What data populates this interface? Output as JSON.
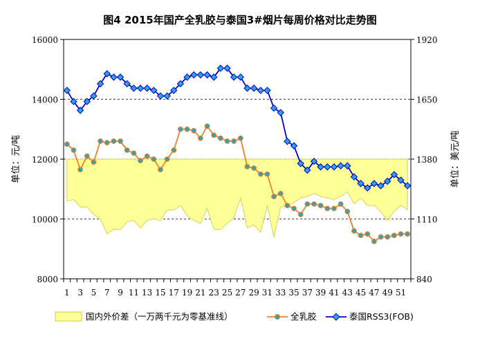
{
  "chart_data": {
    "type": "line",
    "title": "图4  2015年国产全乳胶与泰国3#烟片每周价格对比走势图",
    "ylabel_left": "单位：元/吨",
    "ylabel_right": "单位：美元/吨",
    "left_axis": {
      "min": 8000,
      "max": 16000,
      "ticks": [
        "8000",
        "10000",
        "12000",
        "14000",
        "16000"
      ]
    },
    "right_axis": {
      "min": 840,
      "max": 1920,
      "ticks": [
        "840",
        "1110",
        "1380",
        "1650",
        "1920"
      ]
    },
    "x_ticks": [
      "1",
      "3",
      "5",
      "7",
      "9",
      "11",
      "13",
      "15",
      "17",
      "19",
      "21",
      "23",
      "25",
      "27",
      "29",
      "31",
      "33",
      "35",
      "37",
      "39",
      "41",
      "43",
      "45",
      "47",
      "49",
      "51"
    ],
    "weeks": 52,
    "spread_baseline": 12000,
    "grid": "dashed-horizontal",
    "legend_placement": "bottom",
    "colors": {
      "spread_fill": "#ffff99",
      "spread_stroke": "#c9c93a",
      "latex_line": "#f08020",
      "latex_marker": "#3aa0b0",
      "rss3_line": "#0000cc",
      "rss3_marker": "#30a0e0"
    },
    "series": [
      {
        "name": "国内外价差（一万两千元为零基准线）",
        "kind": "area",
        "axis": "left",
        "values": [
          10600,
          10650,
          10400,
          10400,
          10150,
          10000,
          9500,
          9650,
          9650,
          9900,
          9950,
          9700,
          9950,
          10000,
          9950,
          10300,
          10300,
          10450,
          10100,
          9950,
          9850,
          10350,
          9650,
          9650,
          9850,
          10050,
          10700,
          9700,
          9800,
          9550,
          10450,
          9400,
          10400,
          10450,
          10550,
          10700,
          10750,
          10850,
          10750,
          10700,
          10650,
          10750,
          10900,
          10500,
          10700,
          10450,
          10450,
          10250,
          9950,
          10250,
          10450,
          10300
        ]
      },
      {
        "name": "全乳胶",
        "kind": "line",
        "axis": "left",
        "values": [
          12500,
          12300,
          11650,
          12100,
          11900,
          12600,
          12550,
          12600,
          12600,
          12300,
          12200,
          11950,
          12100,
          12000,
          11650,
          12000,
          12300,
          13000,
          13000,
          12950,
          12700,
          13100,
          12800,
          12700,
          12600,
          12600,
          12700,
          11750,
          11700,
          11500,
          11500,
          10750,
          10850,
          10450,
          10350,
          10150,
          10500,
          10500,
          10450,
          10350,
          10350,
          10500,
          10250,
          9600,
          9450,
          9500,
          9250,
          9400,
          9400,
          9450,
          9500,
          9500
        ]
      },
      {
        "name": "泰国RSS3(FOB)",
        "kind": "line",
        "axis": "right",
        "values": [
          1690,
          1640,
          1600,
          1640,
          1665,
          1720,
          1765,
          1750,
          1750,
          1720,
          1700,
          1700,
          1700,
          1690,
          1665,
          1665,
          1690,
          1720,
          1750,
          1760,
          1760,
          1760,
          1750,
          1790,
          1790,
          1750,
          1750,
          1700,
          1700,
          1690,
          1690,
          1610,
          1590,
          1460,
          1440,
          1360,
          1330,
          1370,
          1345,
          1345,
          1345,
          1350,
          1350,
          1300,
          1270,
          1250,
          1270,
          1260,
          1280,
          1310,
          1285,
          1260
        ]
      }
    ]
  }
}
